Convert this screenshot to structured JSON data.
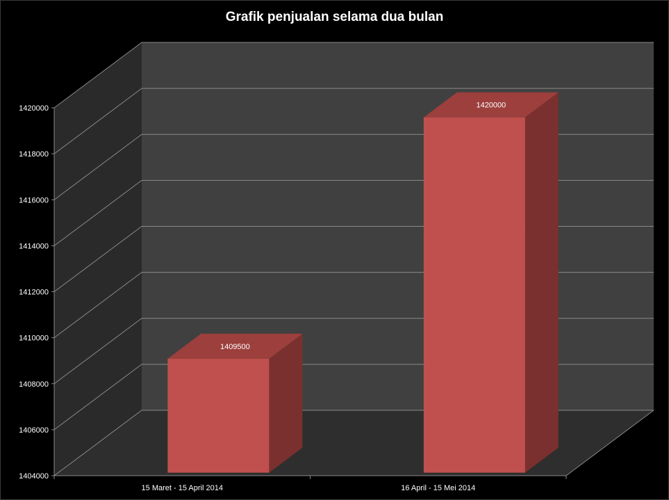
{
  "chart_data": {
    "type": "bar",
    "title": "Grafik penjualan selama dua bulan",
    "categories": [
      "15 Maret - 15 April 2014",
      "16 April - 15 Mei 2014"
    ],
    "values": [
      1409500,
      1420000
    ],
    "data_labels": [
      "1409500",
      "1420000"
    ],
    "ylim": [
      1404000,
      1420000
    ],
    "yticks": [
      1404000,
      1406000,
      1408000,
      1410000,
      1412000,
      1414000,
      1416000,
      1418000,
      1420000
    ],
    "ytick_labels": [
      "1404000",
      "1406000",
      "1408000",
      "1410000",
      "1412000",
      "1414000",
      "1416000",
      "1418000",
      "1420000"
    ],
    "xlabel": "",
    "ylabel": "",
    "grid": true,
    "legend": "none",
    "style": "3d-column"
  },
  "colors": {
    "background": "#000000",
    "back_wall": "#404040",
    "side_wall": "#2a2a2a",
    "floor": "#2e2e2e",
    "gridline": "#8a8a8a",
    "bar_front": "#c0504d",
    "bar_top": "#9c3f3d",
    "bar_side": "#7a302e",
    "text": "#ffffff"
  }
}
